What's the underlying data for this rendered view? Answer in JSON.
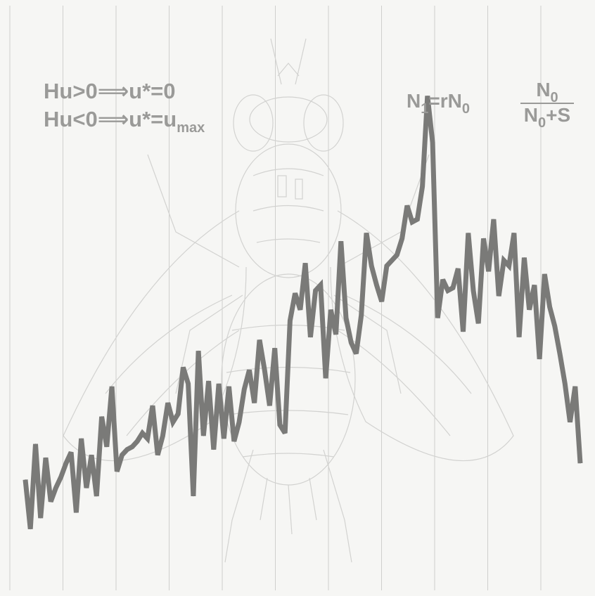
{
  "formulas": {
    "left": {
      "line1": {
        "lhs": "Hu",
        "op": ">",
        "zero": "0",
        "implies": "⟹",
        "rhs": "u*",
        "eq": "=",
        "val": "0"
      },
      "line2": {
        "lhs": "Hu",
        "op": "<",
        "zero": "0",
        "implies": "⟹",
        "rhs": "u*",
        "eq": "=",
        "val": "u",
        "val_sub": "max"
      }
    },
    "right": {
      "lhs": "N",
      "lhs_sub": "1",
      "eq": "=",
      "factor": "rN",
      "factor_sub": "0",
      "numerator": "N",
      "numerator_sub": "0",
      "denominator": "N",
      "denominator_sub": "0",
      "denominator_rest": "+S"
    }
  },
  "illustration": {
    "subject": "fly-sketch",
    "colors": {
      "line": "#7a7a78",
      "grid": "#cfcfcd",
      "sketch": "#d4d4d2",
      "text": "#9a9a98"
    }
  },
  "chart_data": {
    "type": "line",
    "title": "",
    "xlabel": "",
    "ylabel": "",
    "grid": "vertical",
    "series": [
      {
        "values": [
          25,
          7,
          38,
          11,
          33,
          17,
          22,
          26,
          31,
          35,
          13,
          40,
          22,
          34,
          19,
          48,
          37,
          59,
          28,
          34,
          36,
          37,
          39,
          42,
          40,
          52,
          34,
          41,
          53,
          46,
          49,
          66,
          60,
          19,
          72,
          41,
          61,
          36,
          60,
          40,
          59,
          39,
          46,
          58,
          65,
          53,
          76,
          65,
          52,
          73,
          45,
          42,
          83,
          93,
          87,
          104,
          77,
          94,
          96,
          62,
          87,
          78,
          112,
          84,
          75,
          71,
          85,
          115,
          103,
          96,
          90,
          103,
          105,
          107,
          113,
          125,
          119,
          120,
          132,
          165,
          148,
          84,
          98,
          94,
          95,
          102,
          79,
          115,
          94,
          82,
          113,
          101,
          120,
          92,
          105,
          103,
          115,
          77,
          106,
          87,
          96,
          69,
          100,
          88,
          81,
          71,
          60,
          46,
          59,
          31
        ]
      }
    ]
  }
}
